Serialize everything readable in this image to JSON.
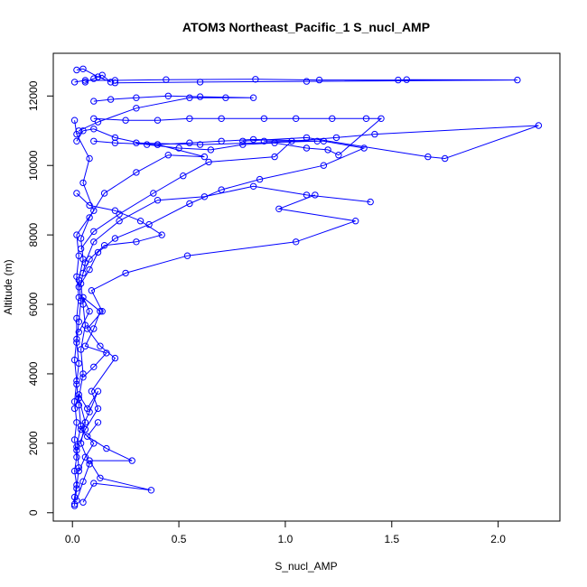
{
  "chart_data": {
    "type": "scatter",
    "title": "ATOM3 Northeast_Pacific_1 S_nucl_AMP",
    "xlabel": "S_nucl_AMP",
    "ylabel": "Altitude (m)",
    "xlim": [
      -0.09,
      2.29
    ],
    "ylim": [
      -240,
      13230
    ],
    "x_ticks": [
      0.0,
      0.5,
      1.0,
      1.5,
      2.0
    ],
    "y_ticks": [
      0,
      2000,
      4000,
      6000,
      8000,
      10000,
      12000
    ],
    "x_tick_labels": [
      "0.0",
      "0.5",
      "1.0",
      "1.5",
      "2.0"
    ],
    "y_tick_labels": [
      "0",
      "2000",
      "4000",
      "6000",
      "8000",
      "10000",
      "12000"
    ],
    "grid": false,
    "marker": "open-circle",
    "connected": true,
    "color": "#0000ff",
    "series": [
      {
        "profiles": [
          [
            [
              0.01,
              200
            ],
            [
              0.01,
              450
            ],
            [
              0.02,
              800
            ],
            [
              0.01,
              1200
            ],
            [
              0.02,
              1600
            ],
            [
              0.01,
              2100
            ],
            [
              0.02,
              2600
            ],
            [
              0.01,
              3200
            ],
            [
              0.02,
              3800
            ],
            [
              0.01,
              4400
            ],
            [
              0.02,
              5000
            ],
            [
              0.02,
              5600
            ],
            [
              0.03,
              6200
            ],
            [
              0.02,
              6800
            ],
            [
              0.03,
              7400
            ],
            [
              0.02,
              8000
            ],
            [
              0.1,
              8700
            ],
            [
              0.05,
              9500
            ],
            [
              0.08,
              10200
            ],
            [
              0.02,
              10900
            ],
            [
              0.01,
              11300
            ]
          ],
          [
            [
              0.01,
              250
            ],
            [
              0.02,
              700
            ],
            [
              0.03,
              1300
            ],
            [
              0.02,
              1900
            ],
            [
              0.04,
              2500
            ],
            [
              0.03,
              3100
            ],
            [
              0.02,
              3700
            ],
            [
              0.03,
              4300
            ],
            [
              0.02,
              4900
            ],
            [
              0.03,
              5500
            ],
            [
              0.04,
              6100
            ],
            [
              0.03,
              6700
            ],
            [
              0.05,
              7300
            ],
            [
              0.04,
              7900
            ],
            [
              0.08,
              8500
            ],
            [
              0.15,
              9200
            ],
            [
              0.3,
              9800
            ],
            [
              0.45,
              10300
            ],
            [
              0.62,
              10250
            ],
            [
              0.4,
              10600
            ]
          ],
          [
            [
              0.02,
              350
            ],
            [
              0.05,
              900
            ],
            [
              0.08,
              1400
            ],
            [
              0.04,
              2000
            ],
            [
              0.06,
              2600
            ],
            [
              0.03,
              3300
            ],
            [
              0.05,
              4000
            ],
            [
              0.04,
              4700
            ],
            [
              0.06,
              5400
            ],
            [
              0.05,
              6000
            ],
            [
              0.04,
              6600
            ],
            [
              0.06,
              7200
            ],
            [
              0.1,
              7800
            ],
            [
              0.22,
              8400
            ],
            [
              0.4,
              9000
            ],
            [
              0.62,
              9100
            ],
            [
              0.85,
              9400
            ],
            [
              1.1,
              9150
            ],
            [
              1.4,
              8950
            ]
          ],
          [
            [
              0.05,
              300
            ],
            [
              0.1,
              850
            ],
            [
              0.37,
              650
            ],
            [
              0.13,
              1000
            ],
            [
              0.08,
              1500
            ],
            [
              0.28,
              1500
            ],
            [
              0.16,
              1850
            ],
            [
              0.07,
              2200
            ],
            [
              0.12,
              2600
            ]
          ],
          [
            [
              0.02,
              1800
            ],
            [
              0.06,
              2400
            ],
            [
              0.12,
              3000
            ],
            [
              0.09,
              3500
            ],
            [
              0.2,
              4450
            ],
            [
              0.13,
              4800
            ],
            [
              0.07,
              5300
            ],
            [
              0.14,
              5800
            ],
            [
              0.09,
              6400
            ],
            [
              0.25,
              6900
            ],
            [
              0.54,
              7400
            ],
            [
              1.05,
              7800
            ],
            [
              1.33,
              8400
            ],
            [
              0.97,
              8750
            ],
            [
              1.14,
              9150
            ]
          ],
          [
            [
              0.03,
              6500
            ],
            [
              0.08,
              7000
            ],
            [
              0.12,
              7500
            ],
            [
              0.2,
              7900
            ],
            [
              0.36,
              8300
            ],
            [
              0.55,
              8900
            ],
            [
              0.7,
              9300
            ],
            [
              0.88,
              9600
            ],
            [
              1.18,
              10000
            ],
            [
              1.37,
              10500
            ],
            [
              1.18,
              10700
            ],
            [
              0.9,
              10700
            ]
          ],
          [
            [
              0.04,
              7600
            ],
            [
              0.1,
              8100
            ],
            [
              0.22,
              8600
            ],
            [
              0.38,
              9200
            ],
            [
              0.52,
              9700
            ],
            [
              0.64,
              10100
            ],
            [
              0.95,
              10250
            ],
            [
              1.03,
              10700
            ],
            [
              1.24,
              10800
            ],
            [
              1.42,
              10900
            ],
            [
              2.19,
              11150
            ],
            [
              1.75,
              10200
            ],
            [
              1.67,
              10250
            ],
            [
              1.1,
              10800
            ],
            [
              0.8,
              10700
            ]
          ],
          [
            [
              0.02,
              10700
            ],
            [
              0.05,
              11000
            ],
            [
              0.1,
              11050
            ],
            [
              0.2,
              10800
            ],
            [
              0.35,
              10600
            ],
            [
              0.5,
              10500
            ],
            [
              0.65,
              10450
            ],
            [
              0.8,
              10600
            ],
            [
              0.95,
              10650
            ],
            [
              1.1,
              10500
            ],
            [
              1.2,
              10450
            ],
            [
              1.25,
              10300
            ],
            [
              1.45,
              11350
            ],
            [
              1.38,
              11350
            ],
            [
              1.22,
              11350
            ],
            [
              1.05,
              11350
            ],
            [
              0.9,
              11350
            ],
            [
              0.7,
              11350
            ],
            [
              0.55,
              11350
            ],
            [
              0.4,
              11300
            ],
            [
              0.25,
              11300
            ],
            [
              0.1,
              11350
            ]
          ],
          [
            [
              0.03,
              11000
            ],
            [
              0.12,
              11250
            ],
            [
              0.3,
              11650
            ],
            [
              0.55,
              11950
            ],
            [
              0.72,
              11950
            ],
            [
              0.85,
              11950
            ],
            [
              0.6,
              11980
            ],
            [
              0.45,
              12000
            ],
            [
              0.3,
              11950
            ],
            [
              0.18,
              11900
            ],
            [
              0.1,
              11850
            ]
          ],
          [
            [
              0.01,
              12400
            ],
            [
              0.06,
              12450
            ],
            [
              0.2,
              12450
            ],
            [
              0.44,
              12470
            ],
            [
              0.86,
              12480
            ],
            [
              1.16,
              12460
            ],
            [
              1.53,
              12460
            ],
            [
              1.57,
              12470
            ],
            [
              2.09,
              12460
            ],
            [
              1.1,
              12420
            ],
            [
              0.6,
              12400
            ],
            [
              0.2,
              12380
            ]
          ],
          [
            [
              0.02,
              12750
            ],
            [
              0.05,
              12780
            ],
            [
              0.12,
              12550
            ],
            [
              0.18,
              12400
            ],
            [
              0.14,
              12600
            ],
            [
              0.1,
              12500
            ],
            [
              0.06,
              12400
            ]
          ],
          [
            [
              0.1,
              10700
            ],
            [
              0.2,
              10650
            ],
            [
              0.4,
              10600
            ],
            [
              0.55,
              10650
            ],
            [
              0.7,
              10700
            ],
            [
              0.85,
              10750
            ],
            [
              1.15,
              10700
            ],
            [
              0.6,
              10600
            ],
            [
              0.3,
              10650
            ]
          ],
          [
            [
              0.02,
              9200
            ],
            [
              0.08,
              8850
            ],
            [
              0.2,
              8700
            ],
            [
              0.32,
              8400
            ],
            [
              0.42,
              8000
            ],
            [
              0.3,
              7800
            ],
            [
              0.15,
              7700
            ],
            [
              0.08,
              7300
            ],
            [
              0.05,
              6900
            ]
          ],
          [
            [
              0.03,
              5200
            ],
            [
              0.08,
              5800
            ],
            [
              0.05,
              6200
            ],
            [
              0.13,
              5800
            ],
            [
              0.1,
              5300
            ],
            [
              0.06,
              4800
            ],
            [
              0.16,
              4600
            ],
            [
              0.1,
              4200
            ],
            [
              0.05,
              3900
            ]
          ],
          [
            [
              0.01,
              3000
            ],
            [
              0.03,
              3400
            ],
            [
              0.07,
              3000
            ],
            [
              0.12,
              3500
            ],
            [
              0.08,
              2900
            ],
            [
              0.04,
              2400
            ],
            [
              0.1,
              2000
            ],
            [
              0.06,
              1600
            ],
            [
              0.03,
              1200
            ]
          ]
        ]
      }
    ]
  }
}
